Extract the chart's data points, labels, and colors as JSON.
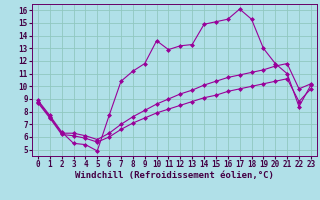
{
  "background_color": "#b0e0e8",
  "grid_color": "#90c8c0",
  "line_color": "#990099",
  "marker": "D",
  "marker_size": 2.0,
  "linewidth": 0.8,
  "xlabel": "Windchill (Refroidissement éolien,°C)",
  "xlabel_fontsize": 6.5,
  "tick_fontsize": 5.5,
  "xlim": [
    -0.5,
    23.5
  ],
  "ylim": [
    4.5,
    16.5
  ],
  "yticks": [
    5,
    6,
    7,
    8,
    9,
    10,
    11,
    12,
    13,
    14,
    15,
    16
  ],
  "xticks": [
    0,
    1,
    2,
    3,
    4,
    5,
    6,
    7,
    8,
    9,
    10,
    11,
    12,
    13,
    14,
    15,
    16,
    17,
    18,
    19,
    20,
    21,
    22,
    23
  ],
  "series1_x": [
    0,
    1,
    2,
    3,
    4,
    5,
    6,
    7,
    8,
    9,
    10,
    11,
    12,
    13,
    14,
    15,
    16,
    17,
    18,
    19,
    20,
    21,
    22,
    23
  ],
  "series1_y": [
    8.9,
    7.7,
    6.4,
    5.5,
    5.4,
    4.9,
    7.7,
    10.4,
    11.2,
    11.8,
    13.6,
    12.9,
    13.2,
    13.3,
    14.9,
    15.1,
    15.3,
    16.1,
    15.3,
    13.0,
    11.8,
    11.0,
    8.4,
    10.1
  ],
  "series2_x": [
    0,
    1,
    2,
    3,
    4,
    5,
    6,
    7,
    8,
    9,
    10,
    11,
    12,
    13,
    14,
    15,
    16,
    17,
    18,
    19,
    20,
    21,
    22,
    23
  ],
  "series2_y": [
    8.8,
    7.6,
    6.3,
    6.3,
    6.1,
    5.8,
    6.3,
    7.0,
    7.6,
    8.1,
    8.6,
    9.0,
    9.4,
    9.7,
    10.1,
    10.4,
    10.7,
    10.9,
    11.1,
    11.3,
    11.6,
    11.8,
    9.8,
    10.2
  ],
  "series3_x": [
    0,
    1,
    2,
    3,
    4,
    5,
    6,
    7,
    8,
    9,
    10,
    11,
    12,
    13,
    14,
    15,
    16,
    17,
    18,
    19,
    20,
    21,
    22,
    23
  ],
  "series3_y": [
    8.7,
    7.5,
    6.2,
    6.1,
    5.9,
    5.6,
    6.0,
    6.6,
    7.1,
    7.5,
    7.9,
    8.2,
    8.5,
    8.8,
    9.1,
    9.3,
    9.6,
    9.8,
    10.0,
    10.2,
    10.4,
    10.6,
    8.8,
    9.8
  ]
}
